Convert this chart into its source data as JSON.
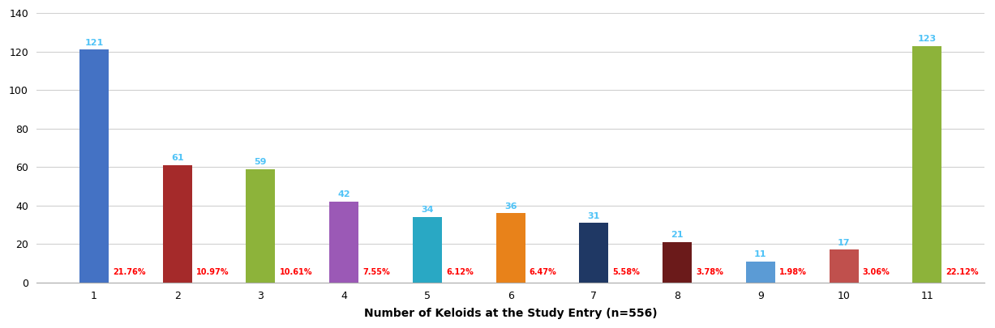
{
  "categories": [
    1,
    2,
    3,
    4,
    5,
    6,
    7,
    8,
    9,
    10,
    11
  ],
  "values": [
    121,
    61,
    59,
    42,
    34,
    36,
    31,
    21,
    11,
    17,
    123
  ],
  "percentages": [
    "21.76%",
    "10.97%",
    "10.61%",
    "7.55%",
    "6.12%",
    "6.47%",
    "5.58%",
    "3.78%",
    "1.98%",
    "3.06%",
    "22.12%"
  ],
  "bar_colors": [
    "#4472C4",
    "#A52A2A",
    "#8DB33A",
    "#9B59B6",
    "#29A8C4",
    "#E8821A",
    "#1F3864",
    "#6B1A1A",
    "#5B9BD5",
    "#C0504D",
    "#8DB33A"
  ],
  "xlabel": "Number of Keloids at the Study Entry (n=556)",
  "ylim": [
    0,
    140
  ],
  "yticks": [
    0,
    20,
    40,
    60,
    80,
    100,
    120,
    140
  ],
  "value_label_color": "#4FC3F7",
  "pct_label_color": "#FF0000",
  "background_color": "#FFFFFF",
  "grid_color": "#D0D0D0",
  "figsize": [
    12.27,
    4.05
  ],
  "dpi": 100
}
